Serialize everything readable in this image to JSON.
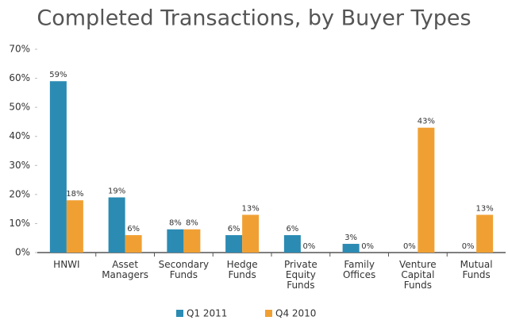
{
  "chart_data": {
    "type": "bar",
    "title": "Completed Transactions, by Buyer Types",
    "categories": [
      "HNWI",
      "Asset Managers",
      "Secondary Funds",
      "Hedge Funds",
      "Private Equity Funds",
      "Family Offices",
      "Venture Capital Funds",
      "Mutual Funds"
    ],
    "series": [
      {
        "name": "Q1 2011",
        "color": "#2b8bb3",
        "values": [
          59,
          19,
          8,
          6,
          6,
          3,
          0,
          0
        ],
        "value_labels": [
          "59%",
          "19%",
          "8%",
          "6%",
          "6%",
          "3%",
          "0%",
          "0%"
        ]
      },
      {
        "name": "Q4 2010",
        "color": "#f0a033",
        "values": [
          18,
          6,
          8,
          13,
          0,
          0,
          43,
          13
        ],
        "value_labels": [
          "18%",
          "6%",
          "8%",
          "13%",
          "0%",
          "0%",
          "43%",
          "13%"
        ]
      }
    ],
    "ylim": [
      0,
      70
    ],
    "yticks": [
      {
        "value": 0,
        "label": "0%"
      },
      {
        "value": 10,
        "label": "10%"
      },
      {
        "value": 20,
        "label": "20%"
      },
      {
        "value": 30,
        "label": "30%"
      },
      {
        "value": 40,
        "label": "40%"
      },
      {
        "value": 50,
        "label": "50%"
      },
      {
        "value": 60,
        "label": "60%"
      },
      {
        "value": 70,
        "label": "70%"
      }
    ],
    "grid": false,
    "legend": "bottom"
  }
}
